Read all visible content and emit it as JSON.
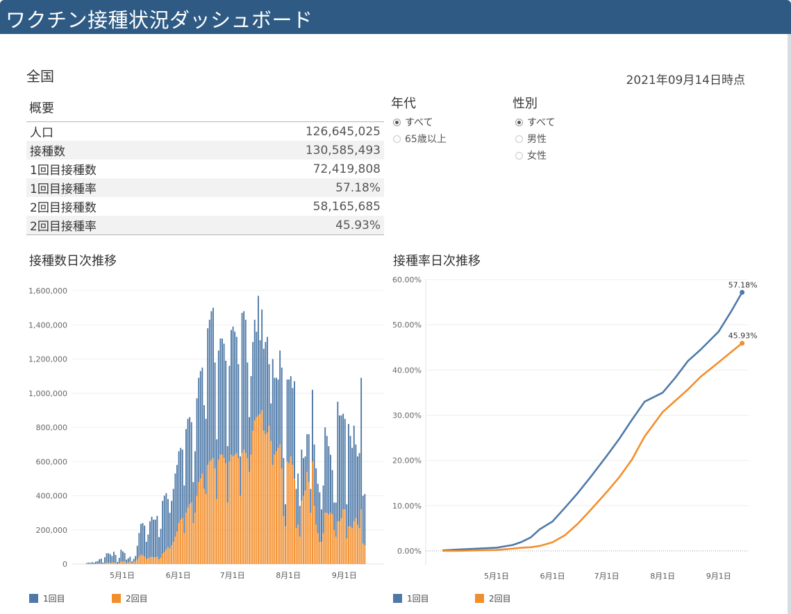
{
  "header": {
    "title": "ワクチン接種状況ダッシュボード"
  },
  "region": "全国",
  "as_of": "2021年09月14日時点",
  "summary": {
    "title": "概要",
    "rows": [
      {
        "label": "人口",
        "value": "126,645,025"
      },
      {
        "label": "接種数",
        "value": "130,585,493"
      },
      {
        "label": "1回目接種数",
        "value": "72,419,808"
      },
      {
        "label": "1回目接種率",
        "value": "57.18%"
      },
      {
        "label": "2回目接種数",
        "value": "58,165,685"
      },
      {
        "label": "2回目接種率",
        "value": "45.93%"
      }
    ]
  },
  "filters": {
    "age": {
      "title": "年代",
      "options": [
        {
          "label": "すべて",
          "selected": true
        },
        {
          "label": "65歳以上",
          "selected": false
        }
      ]
    },
    "gender": {
      "title": "性別",
      "options": [
        {
          "label": "すべて",
          "selected": true
        },
        {
          "label": "男性",
          "selected": false
        },
        {
          "label": "女性",
          "selected": false
        }
      ]
    }
  },
  "colors": {
    "dose1": "#4e79a7",
    "dose2": "#f28e2b",
    "header": "#2e5a84"
  },
  "legend": {
    "dose1": "1回目",
    "dose2": "2回目"
  },
  "chart_data": [
    {
      "type": "bar",
      "stacked": true,
      "title": "接種数日次推移",
      "xlabel": "",
      "ylabel": "",
      "ylim": [
        0,
        1600000
      ],
      "yticks": [
        0,
        200000,
        400000,
        600000,
        800000,
        1000000,
        1200000,
        1400000,
        1600000
      ],
      "ytick_labels": [
        "0",
        "200,000",
        "400,000",
        "600,000",
        "800,000",
        "1,000,000",
        "1,200,000",
        "1,400,000",
        "1,600,000"
      ],
      "x_tick_labels": [
        "5月1日",
        "6月1日",
        "7月1日",
        "8月1日",
        "9月1日"
      ],
      "x_tick_index": [
        20,
        51,
        81,
        112,
        143
      ],
      "series": [
        {
          "name": "1回目",
          "values": [
            5000,
            8000,
            6000,
            10000,
            7000,
            12000,
            15000,
            25000,
            28000,
            8000,
            35000,
            55000,
            55000,
            50000,
            40000,
            62000,
            45000,
            10000,
            30000,
            70000,
            60000,
            50000,
            20000,
            25000,
            30000,
            10000,
            20000,
            30000,
            80000,
            140000,
            180000,
            190000,
            180000,
            100000,
            140000,
            210000,
            235000,
            220000,
            220000,
            240000,
            130000,
            170000,
            310000,
            330000,
            330000,
            280000,
            210000,
            260000,
            310000,
            370000,
            390000,
            420000,
            420000,
            400000,
            280000,
            490000,
            520000,
            510000,
            470000,
            240000,
            360000,
            570000,
            610000,
            630000,
            620000,
            490000,
            440000,
            800000,
            830000,
            870000,
            880000,
            620000,
            350000,
            640000,
            680000,
            680000,
            670000,
            600000,
            330000,
            560000,
            730000,
            760000,
            720000,
            680000,
            550000,
            230000,
            820000,
            810000,
            780000,
            560000,
            320000,
            460000,
            520000,
            590000,
            500000,
            700000,
            430000,
            590000,
            480000,
            540000,
            560000,
            360000,
            220000,
            620000,
            450000,
            430000,
            400000,
            550000,
            590000,
            340000,
            130000,
            480000,
            490000,
            470000,
            450000,
            570000,
            230000,
            300000,
            180000,
            300000,
            220000,
            200000,
            220000,
            280000,
            140000,
            420000,
            360000,
            330000,
            290000,
            290000,
            190000,
            280000,
            500000,
            450000,
            400000,
            340000,
            260000,
            160000,
            200000,
            700000,
            620000,
            600000,
            560000,
            530000,
            200000,
            600000,
            530000,
            470000,
            560000,
            430000,
            400000,
            440000,
            770000,
            280000,
            300000
          ]
        },
        {
          "name": "2回目",
          "values": [
            1000,
            1000,
            1000,
            1000,
            1000,
            2000,
            2000,
            3000,
            4000,
            1000,
            5000,
            8000,
            8000,
            8000,
            7000,
            10000,
            8000,
            2000,
            6000,
            14000,
            14000,
            15000,
            6000,
            9000,
            13000,
            5000,
            10000,
            17000,
            27000,
            42000,
            55000,
            50000,
            45000,
            30000,
            33000,
            40000,
            42000,
            40000,
            40000,
            42000,
            28000,
            36000,
            60000,
            70000,
            85000,
            100000,
            90000,
            110000,
            130000,
            160000,
            190000,
            240000,
            260000,
            270000,
            180000,
            300000,
            330000,
            350000,
            360000,
            240000,
            300000,
            400000,
            480000,
            500000,
            530000,
            440000,
            410000,
            580000,
            600000,
            610000,
            620000,
            560000,
            380000,
            610000,
            640000,
            640000,
            620000,
            590000,
            360000,
            600000,
            640000,
            630000,
            640000,
            650000,
            620000,
            400000,
            650000,
            670000,
            650000,
            620000,
            540000,
            640000,
            780000,
            840000,
            860000,
            870000,
            880000,
            900000,
            780000,
            760000,
            770000,
            810000,
            720000,
            580000,
            640000,
            660000,
            680000,
            700000,
            560000,
            280000,
            220000,
            600000,
            590000,
            630000,
            580000,
            500000,
            210000,
            230000,
            160000,
            370000,
            400000,
            430000,
            540000,
            480000,
            300000,
            600000,
            340000,
            230000,
            180000,
            130000,
            130000,
            180000,
            300000,
            300000,
            290000,
            300000,
            290000,
            200000,
            160000,
            250000,
            250000,
            270000,
            320000,
            320000,
            150000,
            220000,
            220000,
            210000,
            250000,
            270000,
            230000,
            210000,
            320000,
            120000,
            110000
          ]
        }
      ]
    },
    {
      "type": "line",
      "title": "接種率日次推移",
      "xlabel": "",
      "ylabel": "",
      "ylim": [
        0,
        60
      ],
      "y_unit": "%",
      "yticks": [
        0,
        10,
        20,
        30,
        40,
        50,
        60
      ],
      "ytick_labels": [
        "0.00%",
        "10.00%",
        "20.00%",
        "30.00%",
        "40.00%",
        "50.00%",
        "60.00%"
      ],
      "x_tick_labels": [
        "5月1日",
        "6月1日",
        "7月1日",
        "8月1日",
        "9月1日"
      ],
      "x_tick_date": [
        "2021-05-01",
        "2021-06-01",
        "2021-07-01",
        "2021-08-01",
        "2021-09-01"
      ],
      "x": [
        "2021-04-01",
        "2021-04-10",
        "2021-04-20",
        "2021-05-01",
        "2021-05-10",
        "2021-05-15",
        "2021-05-20",
        "2021-05-25",
        "2021-06-01",
        "2021-06-08",
        "2021-06-15",
        "2021-06-22",
        "2021-07-01",
        "2021-07-08",
        "2021-07-15",
        "2021-07-22",
        "2021-08-01",
        "2021-08-08",
        "2021-08-15",
        "2021-08-22",
        "2021-09-01",
        "2021-09-08",
        "2021-09-14"
      ],
      "series": [
        {
          "name": "1回目",
          "values": [
            0.1,
            0.3,
            0.5,
            0.7,
            1.3,
            2.0,
            3.0,
            4.8,
            6.5,
            9.6,
            12.8,
            16.3,
            21.0,
            24.8,
            29.0,
            33.0,
            35.0,
            38.3,
            42.0,
            44.5,
            48.5,
            53.0,
            57.18
          ]
        },
        {
          "name": "2回目",
          "values": [
            0.0,
            0.0,
            0.1,
            0.2,
            0.5,
            0.7,
            0.8,
            1.1,
            1.9,
            3.5,
            6.0,
            9.0,
            13.0,
            16.3,
            20.2,
            25.3,
            30.7,
            33.2,
            35.7,
            38.5,
            41.7,
            44.0,
            45.93
          ]
        }
      ],
      "end_labels": [
        "57.18%",
        "45.93%"
      ]
    }
  ]
}
